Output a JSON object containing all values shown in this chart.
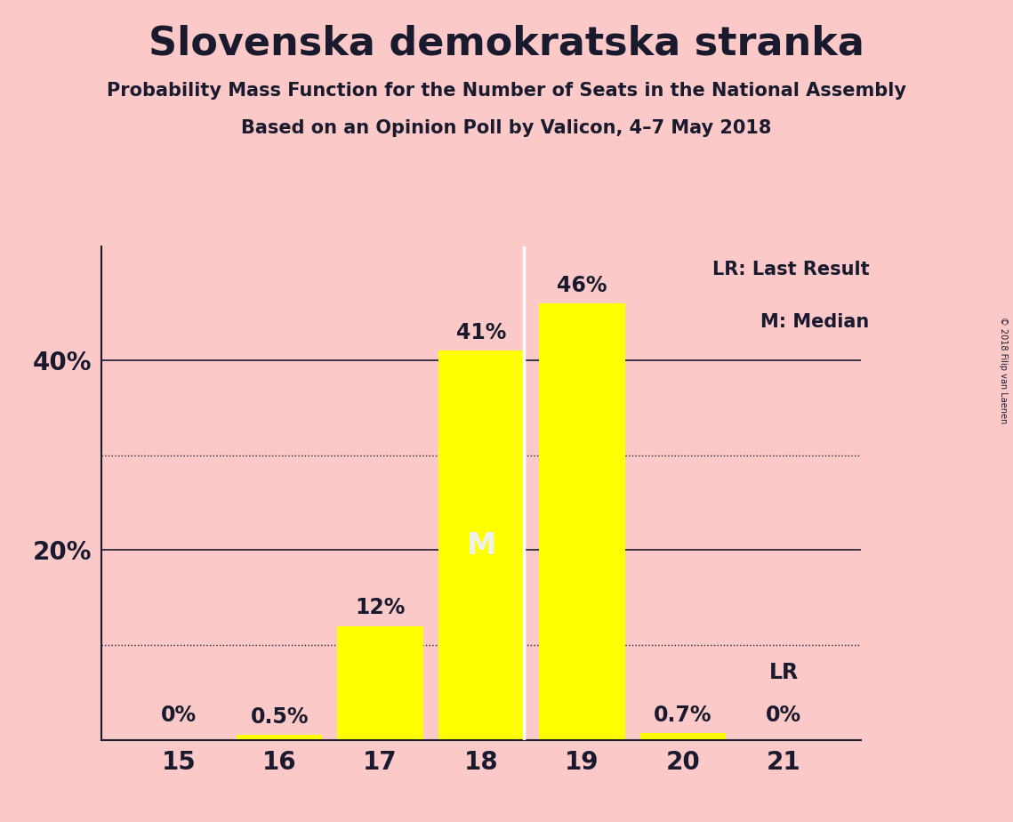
{
  "title": "Slovenska demokratska stranka",
  "subtitle1": "Probability Mass Function for the Number of Seats in the National Assembly",
  "subtitle2": "Based on an Opinion Poll by Valicon, 4–7 May 2018",
  "copyright": "© 2018 Filip van Laenen",
  "categories": [
    15,
    16,
    17,
    18,
    19,
    20,
    21
  ],
  "values": [
    0.0,
    0.5,
    12.0,
    41.0,
    46.0,
    0.7,
    0.0
  ],
  "bar_color": "#ffff00",
  "background_color": "#fcc9c9",
  "text_color": "#1a1a2e",
  "median_bar": 18,
  "median_label": "M",
  "median_label_color": "#f0f0f0",
  "lr_bar": 21,
  "lr_label": "LR",
  "value_labels": [
    "0%",
    "0.5%",
    "12%",
    "41%",
    "46%",
    "0.7%",
    "0%"
  ],
  "solid_gridlines": [
    20,
    40
  ],
  "dotted_gridlines": [
    10,
    30
  ],
  "ylim": [
    0,
    52
  ],
  "legend_lr": "LR: Last Result",
  "legend_m": "M: Median",
  "white_divider_seat": 18
}
